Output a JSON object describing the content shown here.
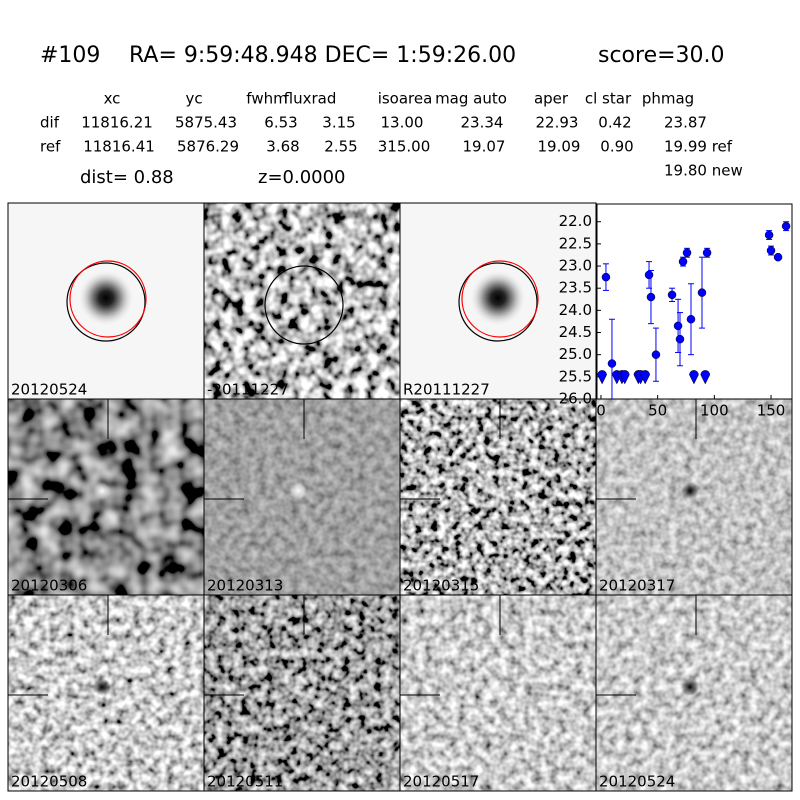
{
  "header": {
    "id": "#109",
    "coords": "RA= 9:59:48.948 DEC= 1:59:26.00",
    "score": "score=30.0"
  },
  "table": {
    "headers": [
      "xc",
      "yc",
      "fwhm",
      "fluxrad",
      "isoarea",
      "mag auto",
      "aper",
      "cl star",
      "phmag"
    ],
    "rows": [
      {
        "label": "dif",
        "cells": [
          "11816.21",
          "5875.43",
          "6.53",
          "3.15",
          "13.00",
          "23.34",
          "22.93",
          "0.42",
          "23.87"
        ]
      },
      {
        "label": "ref",
        "cells": [
          "11816.41",
          "5876.29",
          "3.68",
          "2.55",
          "315.00",
          "19.07",
          "19.09",
          "0.90",
          "19.99 ref"
        ]
      }
    ],
    "extra": "19.80 new"
  },
  "dist": "dist=  0.88",
  "z": "z=0.0000",
  "panels": [
    {
      "label": "20120524"
    },
    {
      "label": "-20111227"
    },
    {
      "label": "R20111227"
    },
    {
      "label": "20120306"
    },
    {
      "label": "20120313"
    },
    {
      "label": "20120315"
    },
    {
      "label": "20120317"
    },
    {
      "label": "20120508"
    },
    {
      "label": "20120511"
    },
    {
      "label": "20120517"
    },
    {
      "label": "20120524",
      "color": "#ff0000"
    }
  ],
  "chart_data": {
    "type": "errorbar",
    "xlim": [
      -3.5,
      168.5
    ],
    "ylim": [
      26.0,
      21.6
    ],
    "xticks": [
      0,
      50,
      100,
      150
    ],
    "yticks": [
      {
        "value": 22.0,
        "label": "22.0"
      },
      {
        "value": 22.5,
        "label": "22.5"
      },
      {
        "value": 23.0,
        "label": "23.0"
      },
      {
        "value": 23.5,
        "label": "23.5"
      },
      {
        "value": 24.0,
        "label": "24.0"
      },
      {
        "value": 24.5,
        "label": "24.5"
      },
      {
        "value": 25.0,
        "label": "25.0"
      },
      {
        "value": 25.5,
        "label": "25.5"
      },
      {
        "value": 26.0,
        "label": "26.0"
      }
    ],
    "series": [
      {
        "color": "#0000ff",
        "x": [
          4.4,
          9.7,
          42.4,
          44.1,
          48.5,
          62.7,
          68,
          69.7,
          72.4,
          75.9,
          79.4,
          89.1,
          93.6,
          148.3,
          150,
          156.2,
          163.3
        ],
        "values": [
          23.25,
          25.2,
          23.2,
          23.7,
          25.0,
          23.65,
          24.35,
          24.65,
          22.9,
          22.7,
          24.2,
          23.6,
          22.7,
          22.3,
          22.65,
          22.8,
          22.1
        ],
        "errors": [
          0.3,
          1.0,
          0.3,
          0.6,
          0.6,
          0.15,
          0.6,
          0.6,
          0.1,
          0.1,
          0.8,
          0.8,
          0.1,
          0.1,
          0.1,
          0.05,
          0.1
        ]
      },
      {
        "color": "#0000ff",
        "marker": "limit",
        "x": [
          1,
          14,
          18.5,
          21,
          33,
          35,
          39,
          82,
          92
        ],
        "values": [
          25.5,
          25.5,
          25.5,
          25.5,
          25.5,
          25.5,
          25.5,
          25.5,
          25.5
        ]
      }
    ]
  }
}
